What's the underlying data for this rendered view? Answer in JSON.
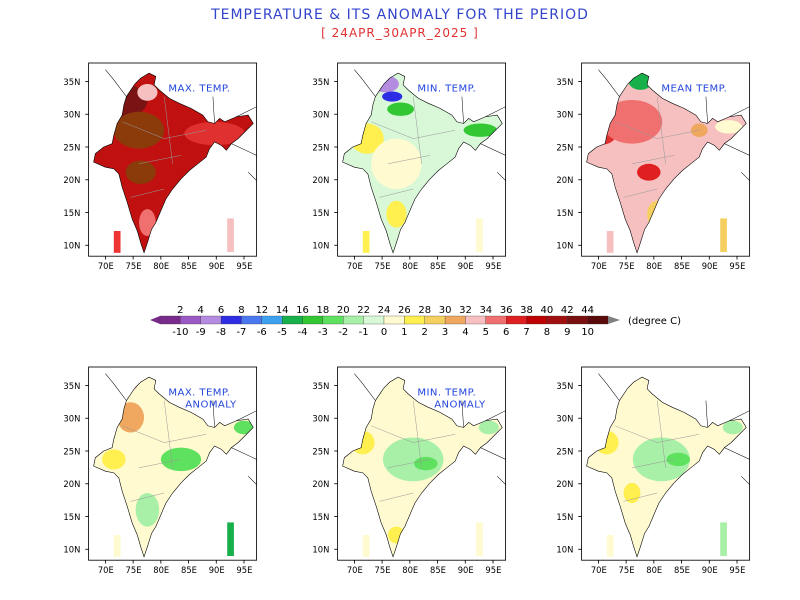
{
  "title": "TEMPERATURE & ITS ANOMALY FOR THE PERIOD",
  "subtitle": "[ 24APR_30APR_2025 ]",
  "panels": [
    {
      "label": "MAX. TEMP.",
      "label2": "",
      "scheme": "max"
    },
    {
      "label": "MIN. TEMP.",
      "label2": "",
      "scheme": "min"
    },
    {
      "label": "MEAN TEMP.",
      "label2": "",
      "scheme": "mean"
    },
    {
      "label": "MAX. TEMP.",
      "label2": "ANOMALY",
      "scheme": "maxa"
    },
    {
      "label": "MIN. TEMP.",
      "label2": "ANOMALY",
      "scheme": "mina"
    },
    {
      "label": "",
      "label2": "",
      "scheme": "meana"
    }
  ],
  "axes": {
    "x_ticks": [
      "70E",
      "75E",
      "80E",
      "85E",
      "90E",
      "95E"
    ],
    "y_ticks": [
      "35N",
      "30N",
      "25N",
      "20N",
      "15N",
      "10N"
    ]
  },
  "legend": {
    "temperature_labels": [
      "2",
      "4",
      "6",
      "8",
      "12",
      "14",
      "16",
      "18",
      "20",
      "22",
      "24",
      "26",
      "28",
      "30",
      "32",
      "34",
      "36",
      "38",
      "40",
      "42",
      "44"
    ],
    "anomaly_labels": [
      "-10",
      "-9",
      "-8",
      "-7",
      "-6",
      "-5",
      "-4",
      "-3",
      "-2",
      "-1",
      "0",
      "1",
      "2",
      "3",
      "4",
      "5",
      "6",
      "7",
      "8",
      "9",
      "10"
    ],
    "unit": "(degree C)",
    "colors": [
      "#7a2a8a",
      "#9b59c6",
      "#b48ce0",
      "#2d2de6",
      "#4a78f0",
      "#3fa0f0",
      "#18b04b",
      "#33c833",
      "#5ee15e",
      "#a8f0a8",
      "#d8f8d8",
      "#fffad0",
      "#fff050",
      "#f5d060",
      "#f0a860",
      "#f7c0c0",
      "#f07070",
      "#e02020",
      "#c00000",
      "#a01010",
      "#7a1010",
      "#5a0a0a"
    ]
  }
}
